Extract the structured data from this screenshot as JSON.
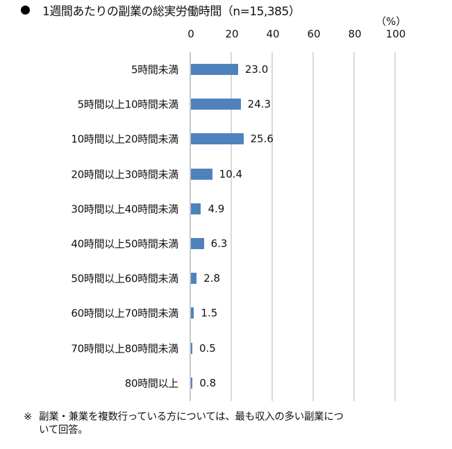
{
  "title": "1週間あたりの副業の総実労働時間（n=15,385）",
  "unit": "（%）",
  "note": {
    "mark": "※",
    "line1": "副業・兼業を複数行っている方については、最も収入の多い副業につ",
    "line2": "いて回答。"
  },
  "chart_data": {
    "type": "bar",
    "orientation": "horizontal",
    "title": "1週間あたりの副業の総実労働時間（n=15,385）",
    "xlabel": "",
    "ylabel": "",
    "unit": "%",
    "xlim": [
      0,
      100
    ],
    "xticks": [
      "0",
      "20",
      "40",
      "60",
      "80",
      "100"
    ],
    "grid": true,
    "legend": null,
    "color": "#4f81bd",
    "categories": [
      "5時間未満",
      "5時間以上10時間未満",
      "10時間以上20時間未満",
      "20時間以上30時間未満",
      "30時間以上40時間未満",
      "40時間以上50時間未満",
      "50時間以上60時間未満",
      "60時間以上70時間未満",
      "70時間以上80時間未満",
      "80時間以上"
    ],
    "values": [
      23.0,
      24.3,
      25.6,
      10.4,
      4.9,
      6.3,
      2.8,
      1.5,
      0.5,
      0.8
    ],
    "value_labels": [
      "23.0",
      "24.3",
      "25.6",
      "10.4",
      "4.9",
      "6.3",
      "2.8",
      "1.5",
      "0.5",
      "0.8"
    ]
  }
}
